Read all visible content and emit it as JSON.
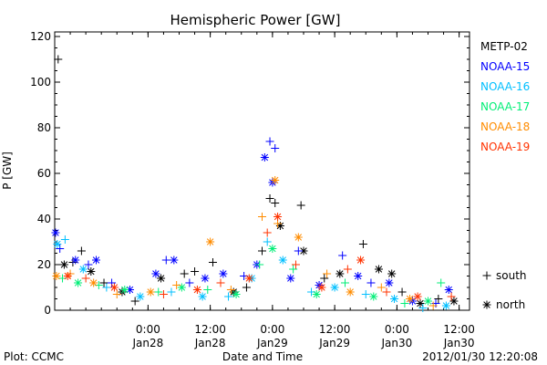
{
  "chart_data": {
    "type": "scatter",
    "title": "Hemispheric Power [GW]",
    "ylabel": "P [GW]",
    "xlabel": "Date and Time",
    "ylim": [
      0,
      122
    ],
    "yticks": [
      0,
      20,
      40,
      60,
      80,
      100,
      120
    ],
    "xlim": [
      "2012-01-27 06:00",
      "2012-01-30 14:00"
    ],
    "xticks": [
      {
        "time": "2012-01-28 00:00",
        "line1": "0:00",
        "line2": "Jan28"
      },
      {
        "time": "2012-01-28 12:00",
        "line1": "12:00",
        "line2": "Jan28"
      },
      {
        "time": "2012-01-29 00:00",
        "line1": "0:00",
        "line2": "Jan29"
      },
      {
        "time": "2012-01-29 12:00",
        "line1": "12:00",
        "line2": "Jan29"
      },
      {
        "time": "2012-01-30 00:00",
        "line1": "0:00",
        "line2": "Jan30"
      },
      {
        "time": "2012-01-30 12:00",
        "line1": "12:00",
        "line2": "Jan30"
      }
    ],
    "marker_legend": [
      {
        "symbol": "+",
        "label": "south"
      },
      {
        "symbol": "*",
        "label": "north"
      }
    ],
    "series": [
      {
        "name": "METP-02",
        "color": "#000000",
        "points": [
          {
            "t": "2012-01-27 06:40",
            "v": 110,
            "m": "+"
          },
          {
            "t": "2012-01-27 07:50",
            "v": 20,
            "m": "*"
          },
          {
            "t": "2012-01-27 09:30",
            "v": 21,
            "m": "+"
          },
          {
            "t": "2012-01-27 11:10",
            "v": 26,
            "m": "+"
          },
          {
            "t": "2012-01-27 13:00",
            "v": 17,
            "m": "*"
          },
          {
            "t": "2012-01-27 15:30",
            "v": 12,
            "m": "+"
          },
          {
            "t": "2012-01-27 19:00",
            "v": 8,
            "m": "*"
          },
          {
            "t": "2012-01-27 21:30",
            "v": 4,
            "m": "+"
          },
          {
            "t": "2012-01-28 02:30",
            "v": 14,
            "m": "*"
          },
          {
            "t": "2012-01-28 07:00",
            "v": 16,
            "m": "+"
          },
          {
            "t": "2012-01-28 09:00",
            "v": 17,
            "m": "+"
          },
          {
            "t": "2012-01-28 12:30",
            "v": 21,
            "m": "+"
          },
          {
            "t": "2012-01-28 16:30",
            "v": 8,
            "m": "*"
          },
          {
            "t": "2012-01-28 19:00",
            "v": 10,
            "m": "+"
          },
          {
            "t": "2012-01-28 22:00",
            "v": 26,
            "m": "+"
          },
          {
            "t": "2012-01-28 23:30",
            "v": 49,
            "m": "+"
          },
          {
            "t": "2012-01-29 00:30",
            "v": 47,
            "m": "+"
          },
          {
            "t": "2012-01-29 01:30",
            "v": 37,
            "m": "*"
          },
          {
            "t": "2012-01-29 05:30",
            "v": 46,
            "m": "+"
          },
          {
            "t": "2012-01-29 06:00",
            "v": 26,
            "m": "*"
          },
          {
            "t": "2012-01-29 10:00",
            "v": 14,
            "m": "+"
          },
          {
            "t": "2012-01-29 13:00",
            "v": 16,
            "m": "*"
          },
          {
            "t": "2012-01-29 17:30",
            "v": 29,
            "m": "+"
          },
          {
            "t": "2012-01-29 20:30",
            "v": 18,
            "m": "*"
          },
          {
            "t": "2012-01-29 23:00",
            "v": 16,
            "m": "*"
          },
          {
            "t": "2012-01-30 01:00",
            "v": 8,
            "m": "+"
          },
          {
            "t": "2012-01-30 04:30",
            "v": 3,
            "m": "*"
          },
          {
            "t": "2012-01-30 08:00",
            "v": 5,
            "m": "+"
          },
          {
            "t": "2012-01-30 11:00",
            "v": 4,
            "m": "*"
          }
        ]
      },
      {
        "name": "NOAA-15",
        "color": "#0000ff",
        "points": [
          {
            "t": "2012-01-27 06:10",
            "v": 34,
            "m": "*"
          },
          {
            "t": "2012-01-27 07:00",
            "v": 27,
            "m": "+"
          },
          {
            "t": "2012-01-27 10:00",
            "v": 22,
            "m": "*"
          },
          {
            "t": "2012-01-27 12:30",
            "v": 20,
            "m": "+"
          },
          {
            "t": "2012-01-27 14:00",
            "v": 22,
            "m": "*"
          },
          {
            "t": "2012-01-27 17:00",
            "v": 12,
            "m": "+"
          },
          {
            "t": "2012-01-27 20:30",
            "v": 9,
            "m": "*"
          },
          {
            "t": "2012-01-28 01:30",
            "v": 16,
            "m": "*"
          },
          {
            "t": "2012-01-28 03:30",
            "v": 22,
            "m": "+"
          },
          {
            "t": "2012-01-28 05:00",
            "v": 22,
            "m": "*"
          },
          {
            "t": "2012-01-28 08:00",
            "v": 12,
            "m": "+"
          },
          {
            "t": "2012-01-28 11:00",
            "v": 14,
            "m": "*"
          },
          {
            "t": "2012-01-28 14:30",
            "v": 16,
            "m": "*"
          },
          {
            "t": "2012-01-28 18:30",
            "v": 15,
            "m": "+"
          },
          {
            "t": "2012-01-28 21:00",
            "v": 20,
            "m": "*"
          },
          {
            "t": "2012-01-28 22:30",
            "v": 67,
            "m": "*"
          },
          {
            "t": "2012-01-28 23:30",
            "v": 74,
            "m": "+"
          },
          {
            "t": "2012-01-29 00:30",
            "v": 71,
            "m": "+"
          },
          {
            "t": "2012-01-29 00:00",
            "v": 56,
            "m": "*"
          },
          {
            "t": "2012-01-29 03:30",
            "v": 14,
            "m": "*"
          },
          {
            "t": "2012-01-29 05:00",
            "v": 26,
            "m": "+"
          },
          {
            "t": "2012-01-29 09:00",
            "v": 11,
            "m": "*"
          },
          {
            "t": "2012-01-29 13:30",
            "v": 24,
            "m": "+"
          },
          {
            "t": "2012-01-29 16:30",
            "v": 15,
            "m": "*"
          },
          {
            "t": "2012-01-29 19:00",
            "v": 12,
            "m": "+"
          },
          {
            "t": "2012-01-29 22:30",
            "v": 12,
            "m": "*"
          },
          {
            "t": "2012-01-30 03:00",
            "v": 4,
            "m": "*"
          },
          {
            "t": "2012-01-30 07:30",
            "v": 3,
            "m": "+"
          },
          {
            "t": "2012-01-30 10:00",
            "v": 9,
            "m": "*"
          }
        ]
      },
      {
        "name": "NOAA-16",
        "color": "#00bfff",
        "points": [
          {
            "t": "2012-01-27 06:30",
            "v": 29,
            "m": "*"
          },
          {
            "t": "2012-01-27 08:00",
            "v": 31,
            "m": "+"
          },
          {
            "t": "2012-01-27 11:30",
            "v": 18,
            "m": "*"
          },
          {
            "t": "2012-01-27 16:00",
            "v": 10,
            "m": "+"
          },
          {
            "t": "2012-01-27 22:30",
            "v": 6,
            "m": "*"
          },
          {
            "t": "2012-01-28 04:30",
            "v": 8,
            "m": "+"
          },
          {
            "t": "2012-01-28 10:30",
            "v": 6,
            "m": "*"
          },
          {
            "t": "2012-01-28 15:30",
            "v": 6,
            "m": "+"
          },
          {
            "t": "2012-01-28 20:00",
            "v": 14,
            "m": "*"
          },
          {
            "t": "2012-01-28 23:00",
            "v": 30,
            "m": "+"
          },
          {
            "t": "2012-01-29 02:00",
            "v": 22,
            "m": "*"
          },
          {
            "t": "2012-01-29 07:30",
            "v": 8,
            "m": "+"
          },
          {
            "t": "2012-01-29 12:00",
            "v": 10,
            "m": "*"
          },
          {
            "t": "2012-01-29 18:00",
            "v": 7,
            "m": "+"
          },
          {
            "t": "2012-01-29 23:30",
            "v": 5,
            "m": "*"
          },
          {
            "t": "2012-01-30 05:00",
            "v": 1,
            "m": "+"
          },
          {
            "t": "2012-01-30 09:30",
            "v": 2,
            "m": "*"
          }
        ]
      },
      {
        "name": "NOAA-17",
        "color": "#00ee77",
        "points": [
          {
            "t": "2012-01-27 07:30",
            "v": 14,
            "m": "+"
          },
          {
            "t": "2012-01-27 10:30",
            "v": 12,
            "m": "*"
          },
          {
            "t": "2012-01-27 14:30",
            "v": 11,
            "m": "+"
          },
          {
            "t": "2012-01-27 19:30",
            "v": 9,
            "m": "*"
          },
          {
            "t": "2012-01-28 02:00",
            "v": 8,
            "m": "+"
          },
          {
            "t": "2012-01-28 06:30",
            "v": 10,
            "m": "*"
          },
          {
            "t": "2012-01-28 11:30",
            "v": 9,
            "m": "+"
          },
          {
            "t": "2012-01-28 17:00",
            "v": 7,
            "m": "*"
          },
          {
            "t": "2012-01-28 21:30",
            "v": 20,
            "m": "+"
          },
          {
            "t": "2012-01-29 00:00",
            "v": 27,
            "m": "*"
          },
          {
            "t": "2012-01-29 04:00",
            "v": 18,
            "m": "+"
          },
          {
            "t": "2012-01-29 08:30",
            "v": 7,
            "m": "*"
          },
          {
            "t": "2012-01-29 14:00",
            "v": 12,
            "m": "+"
          },
          {
            "t": "2012-01-29 19:30",
            "v": 6,
            "m": "*"
          },
          {
            "t": "2012-01-30 01:30",
            "v": 3,
            "m": "+"
          },
          {
            "t": "2012-01-30 06:00",
            "v": 4,
            "m": "*"
          },
          {
            "t": "2012-01-30 08:30",
            "v": 12,
            "m": "+"
          }
        ]
      },
      {
        "name": "NOAA-18",
        "color": "#ff8c00",
        "points": [
          {
            "t": "2012-01-27 06:20",
            "v": 15,
            "m": "*"
          },
          {
            "t": "2012-01-27 09:00",
            "v": 16,
            "m": "+"
          },
          {
            "t": "2012-01-27 13:30",
            "v": 12,
            "m": "*"
          },
          {
            "t": "2012-01-27 18:00",
            "v": 7,
            "m": "+"
          },
          {
            "t": "2012-01-28 00:30",
            "v": 8,
            "m": "*"
          },
          {
            "t": "2012-01-28 05:30",
            "v": 11,
            "m": "+"
          },
          {
            "t": "2012-01-28 12:00",
            "v": 30,
            "m": "*"
          },
          {
            "t": "2012-01-28 16:00",
            "v": 9,
            "m": "+"
          },
          {
            "t": "2012-01-28 22:00",
            "v": 41,
            "m": "+"
          },
          {
            "t": "2012-01-29 00:30",
            "v": 57,
            "m": "*"
          },
          {
            "t": "2012-01-29 01:00",
            "v": 38,
            "m": "+"
          },
          {
            "t": "2012-01-29 05:00",
            "v": 32,
            "m": "*"
          },
          {
            "t": "2012-01-29 10:30",
            "v": 16,
            "m": "+"
          },
          {
            "t": "2012-01-29 15:00",
            "v": 8,
            "m": "*"
          },
          {
            "t": "2012-01-29 21:00",
            "v": 10,
            "m": "+"
          },
          {
            "t": "2012-01-30 02:30",
            "v": 5,
            "m": "*"
          },
          {
            "t": "2012-01-30 07:00",
            "v": 2,
            "m": "+"
          }
        ]
      },
      {
        "name": "NOAA-19",
        "color": "#ff3300",
        "points": [
          {
            "t": "2012-01-27 08:30",
            "v": 15,
            "m": "*"
          },
          {
            "t": "2012-01-27 12:00",
            "v": 14,
            "m": "+"
          },
          {
            "t": "2012-01-27 17:30",
            "v": 10,
            "m": "*"
          },
          {
            "t": "2012-01-28 03:00",
            "v": 7,
            "m": "+"
          },
          {
            "t": "2012-01-28 09:30",
            "v": 9,
            "m": "*"
          },
          {
            "t": "2012-01-28 14:00",
            "v": 12,
            "m": "+"
          },
          {
            "t": "2012-01-28 19:30",
            "v": 14,
            "m": "*"
          },
          {
            "t": "2012-01-28 23:00",
            "v": 34,
            "m": "+"
          },
          {
            "t": "2012-01-29 01:00",
            "v": 41,
            "m": "*"
          },
          {
            "t": "2012-01-29 04:30",
            "v": 20,
            "m": "+"
          },
          {
            "t": "2012-01-29 09:30",
            "v": 10,
            "m": "*"
          },
          {
            "t": "2012-01-29 14:30",
            "v": 18,
            "m": "+"
          },
          {
            "t": "2012-01-29 17:00",
            "v": 22,
            "m": "*"
          },
          {
            "t": "2012-01-29 22:00",
            "v": 8,
            "m": "+"
          },
          {
            "t": "2012-01-30 04:00",
            "v": 6,
            "m": "*"
          },
          {
            "t": "2012-01-30 10:30",
            "v": 6,
            "m": "+"
          }
        ]
      }
    ]
  },
  "footer": {
    "plot_credit": "Plot: CCMC",
    "timestamp": "2012/01/30 12:20:08"
  }
}
